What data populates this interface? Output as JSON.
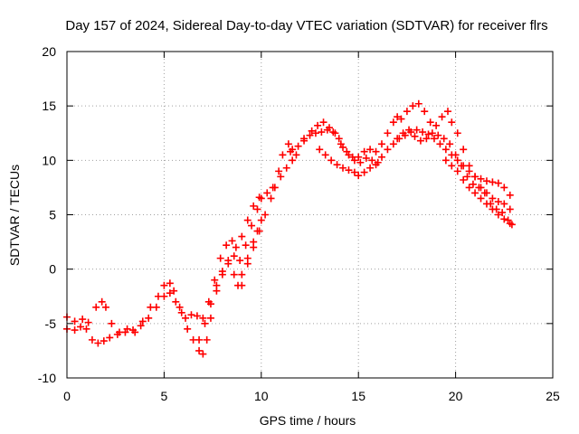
{
  "chart_data": {
    "type": "scatter",
    "title": "Day 157 of 2024, Sidereal Day-to-day VTEC variation (SDTVAR) for receiver flrs",
    "xlabel": "GPS time / hours",
    "ylabel": "SDTVAR / TECUs",
    "xlim": [
      0,
      25
    ],
    "ylim": [
      -10,
      20
    ],
    "xticks": [
      0,
      5,
      10,
      15,
      20,
      25
    ],
    "yticks": [
      -10,
      -5,
      0,
      5,
      10,
      15,
      20
    ],
    "grid": true,
    "marker": "+",
    "marker_color": "#ff0000",
    "series": [
      {
        "name": "satellite tracks",
        "tracks": [
          [
            [
              0.0,
              -5.5
            ],
            [
              0.4,
              -5.6
            ],
            [
              0.7,
              -5.3
            ],
            [
              1.0,
              -5.5
            ],
            [
              1.3,
              -6.5
            ],
            [
              1.6,
              -6.8
            ],
            [
              1.9,
              -6.6
            ],
            [
              2.2,
              -6.3
            ],
            [
              2.6,
              -6.0
            ],
            [
              3.0,
              -5.8
            ],
            [
              3.4,
              -5.6
            ],
            [
              3.8,
              -5.2
            ],
            [
              4.2,
              -4.5
            ],
            [
              4.6,
              -3.5
            ],
            [
              5.0,
              -2.5
            ],
            [
              5.3,
              -2.2
            ],
            [
              5.6,
              -3.0
            ],
            [
              5.9,
              -4.0
            ],
            [
              6.2,
              -5.5
            ],
            [
              6.5,
              -6.5
            ],
            [
              6.8,
              -7.5
            ],
            [
              7.0,
              -7.8
            ],
            [
              7.2,
              -6.5
            ],
            [
              7.4,
              -4.5
            ],
            [
              7.7,
              -2.0
            ],
            [
              8.0,
              -0.5
            ],
            [
              8.3,
              0.5
            ],
            [
              8.6,
              -0.5
            ],
            [
              8.8,
              -1.5
            ],
            [
              9.0,
              -0.5
            ],
            [
              9.3,
              1.0
            ],
            [
              9.6,
              2.5
            ],
            [
              9.8,
              3.5
            ],
            [
              10.0,
              4.5
            ]
          ],
          [
            [
              0.0,
              -4.4
            ],
            [
              0.4,
              -4.8
            ],
            [
              0.8,
              -4.6
            ],
            [
              1.1,
              -4.9
            ],
            [
              1.5,
              -3.5
            ],
            [
              1.8,
              -3.0
            ],
            [
              2.0,
              -3.5
            ],
            [
              2.3,
              -5.0
            ],
            [
              2.7,
              -5.8
            ],
            [
              3.1,
              -5.5
            ],
            [
              3.5,
              -5.8
            ],
            [
              3.9,
              -4.8
            ],
            [
              4.3,
              -3.5
            ],
            [
              4.7,
              -2.5
            ],
            [
              5.0,
              -1.5
            ],
            [
              5.3,
              -1.3
            ],
            [
              5.5,
              -2.0
            ],
            [
              5.8,
              -3.5
            ],
            [
              6.1,
              -4.5
            ],
            [
              6.4,
              -4.2
            ],
            [
              6.7,
              -4.3
            ],
            [
              7.0,
              -4.5
            ],
            [
              7.3,
              -3.0
            ],
            [
              7.6,
              -1.0
            ],
            [
              7.9,
              1.0
            ],
            [
              8.2,
              2.2
            ],
            [
              8.5,
              2.6
            ],
            [
              8.7,
              2.0
            ],
            [
              9.0,
              3.0
            ],
            [
              9.3,
              4.5
            ],
            [
              9.6,
              5.8
            ],
            [
              9.9,
              6.6
            ]
          ],
          [
            [
              6.8,
              -6.5
            ],
            [
              7.1,
              -5.0
            ],
            [
              7.4,
              -3.2
            ],
            [
              7.7,
              -1.5
            ],
            [
              8.0,
              -0.2
            ],
            [
              8.3,
              0.8
            ],
            [
              8.6,
              1.2
            ],
            [
              8.9,
              0.8
            ],
            [
              9.2,
              2.2
            ],
            [
              9.5,
              4.0
            ],
            [
              9.8,
              5.5
            ],
            [
              10.0,
              6.5
            ],
            [
              10.3,
              7.0
            ],
            [
              10.6,
              7.5
            ],
            [
              10.9,
              9.0
            ],
            [
              11.1,
              10.5
            ],
            [
              11.4,
              11.5
            ],
            [
              11.6,
              11.0
            ]
          ],
          [
            [
              9.0,
              -1.5
            ],
            [
              9.3,
              0.5
            ],
            [
              9.6,
              2.0
            ],
            [
              9.9,
              3.5
            ],
            [
              10.2,
              5.0
            ],
            [
              10.5,
              6.5
            ],
            [
              10.7,
              7.5
            ],
            [
              11.0,
              8.5
            ],
            [
              11.3,
              9.3
            ],
            [
              11.6,
              10.0
            ],
            [
              11.8,
              10.5
            ]
          ],
          [
            [
              11.5,
              10.8
            ],
            [
              11.9,
              11.3
            ],
            [
              12.2,
              11.8
            ],
            [
              12.5,
              12.3
            ],
            [
              12.8,
              12.5
            ],
            [
              13.1,
              12.6
            ],
            [
              13.4,
              12.8
            ],
            [
              13.7,
              12.6
            ],
            [
              14.0,
              12.0
            ],
            [
              14.2,
              11.2
            ],
            [
              14.5,
              10.5
            ],
            [
              14.8,
              10.0
            ],
            [
              15.1,
              9.8
            ],
            [
              15.4,
              10.2
            ],
            [
              15.7,
              10.0
            ],
            [
              16.0,
              9.8
            ]
          ],
          [
            [
              12.2,
              12.0
            ],
            [
              12.6,
              12.7
            ],
            [
              12.9,
              13.2
            ],
            [
              13.2,
              13.5
            ],
            [
              13.5,
              13.0
            ],
            [
              13.8,
              12.5
            ],
            [
              14.1,
              11.5
            ],
            [
              14.4,
              10.8
            ],
            [
              14.7,
              10.3
            ],
            [
              15.0,
              10.3
            ],
            [
              15.3,
              10.8
            ],
            [
              15.6,
              11.0
            ],
            [
              15.9,
              10.8
            ]
          ],
          [
            [
              13.0,
              11.0
            ],
            [
              13.3,
              10.5
            ],
            [
              13.6,
              10.0
            ],
            [
              13.9,
              9.6
            ],
            [
              14.2,
              9.3
            ],
            [
              14.5,
              9.1
            ],
            [
              14.8,
              8.9
            ],
            [
              15.0,
              8.6
            ],
            [
              15.3,
              8.9
            ],
            [
              15.6,
              9.3
            ],
            [
              15.9,
              9.6
            ],
            [
              16.2,
              10.3
            ],
            [
              16.5,
              11.0
            ],
            [
              16.8,
              11.5
            ],
            [
              17.1,
              12.0
            ],
            [
              17.4,
              12.3
            ],
            [
              17.7,
              12.6
            ],
            [
              18.0,
              12.8
            ],
            [
              18.3,
              12.6
            ],
            [
              18.6,
              12.4
            ],
            [
              18.9,
              12.0
            ],
            [
              19.2,
              11.5
            ],
            [
              19.5,
              11.0
            ],
            [
              19.8,
              10.5
            ],
            [
              20.1,
              10.0
            ],
            [
              20.4,
              9.5
            ],
            [
              20.7,
              9.0
            ],
            [
              21.0,
              8.5
            ],
            [
              21.3,
              8.3
            ],
            [
              21.6,
              8.1
            ],
            [
              21.9,
              8.0
            ],
            [
              22.2,
              7.9
            ],
            [
              22.5,
              7.5
            ],
            [
              22.8,
              6.8
            ]
          ],
          [
            [
              16.2,
              11.5
            ],
            [
              16.5,
              12.5
            ],
            [
              16.8,
              13.5
            ],
            [
              17.0,
              14.0
            ],
            [
              17.2,
              13.8
            ],
            [
              17.5,
              14.5
            ],
            [
              17.8,
              15.0
            ],
            [
              18.1,
              15.2
            ],
            [
              18.4,
              14.5
            ],
            [
              18.7,
              13.5
            ],
            [
              19.0,
              13.2
            ],
            [
              19.3,
              14.0
            ],
            [
              19.6,
              14.5
            ],
            [
              19.8,
              13.5
            ],
            [
              20.1,
              12.5
            ],
            [
              20.4,
              11.0
            ],
            [
              20.7,
              9.5
            ],
            [
              21.0,
              8.5
            ],
            [
              21.3,
              7.5
            ],
            [
              21.6,
              7.0
            ],
            [
              21.9,
              6.5
            ],
            [
              22.2,
              6.2
            ],
            [
              22.5,
              6.0
            ],
            [
              22.8,
              5.5
            ]
          ],
          [
            [
              17.0,
              12.0
            ],
            [
              17.3,
              12.5
            ],
            [
              17.6,
              12.8
            ],
            [
              17.9,
              12.2
            ],
            [
              18.2,
              11.8
            ],
            [
              18.5,
              12.0
            ],
            [
              18.8,
              12.5
            ],
            [
              19.1,
              12.3
            ],
            [
              19.4,
              12.0
            ],
            [
              19.7,
              11.5
            ],
            [
              20.0,
              10.5
            ],
            [
              20.3,
              9.5
            ],
            [
              20.6,
              8.5
            ],
            [
              20.9,
              7.8
            ],
            [
              21.2,
              7.5
            ],
            [
              21.5,
              7.0
            ],
            [
              21.8,
              6.0
            ],
            [
              22.1,
              5.5
            ],
            [
              22.4,
              5.2
            ],
            [
              22.7,
              4.5
            ],
            [
              22.9,
              4.1
            ]
          ],
          [
            [
              19.5,
              10.0
            ],
            [
              19.8,
              9.5
            ],
            [
              20.1,
              9.0
            ],
            [
              20.4,
              8.2
            ],
            [
              20.7,
              7.5
            ],
            [
              21.0,
              7.0
            ],
            [
              21.3,
              6.5
            ],
            [
              21.6,
              6.0
            ],
            [
              21.9,
              5.5
            ],
            [
              22.2,
              5.0
            ],
            [
              22.5,
              4.6
            ],
            [
              22.8,
              4.2
            ]
          ]
        ]
      }
    ]
  }
}
